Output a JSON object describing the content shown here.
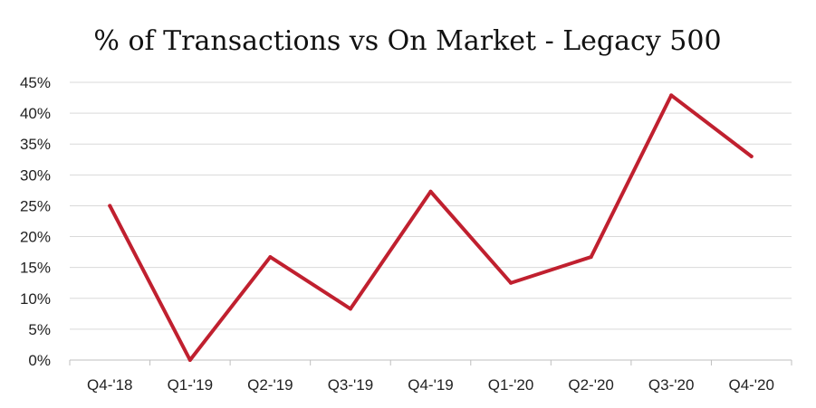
{
  "chart_data": {
    "type": "line",
    "title": "% of Transactions vs On Market - Legacy 500",
    "xlabel": "",
    "ylabel": "",
    "categories": [
      "Q4-'18",
      "Q1-'19",
      "Q2-'19",
      "Q3-'19",
      "Q4-'19",
      "Q1-'20",
      "Q2-'20",
      "Q3-'20",
      "Q4-'20"
    ],
    "series": [
      {
        "values": [
          25,
          0,
          16.7,
          8.3,
          27.3,
          12.5,
          16.7,
          42.9,
          33.0
        ],
        "color": "#c0202f"
      }
    ],
    "ylim": [
      0,
      45
    ],
    "yticks": [
      0,
      5,
      10,
      15,
      20,
      25,
      30,
      35,
      40,
      45
    ],
    "ytick_labels": [
      "0%",
      "5%",
      "10%",
      "15%",
      "20%",
      "25%",
      "30%",
      "35%",
      "40%",
      "45%"
    ],
    "grid": true,
    "legend": "none"
  }
}
